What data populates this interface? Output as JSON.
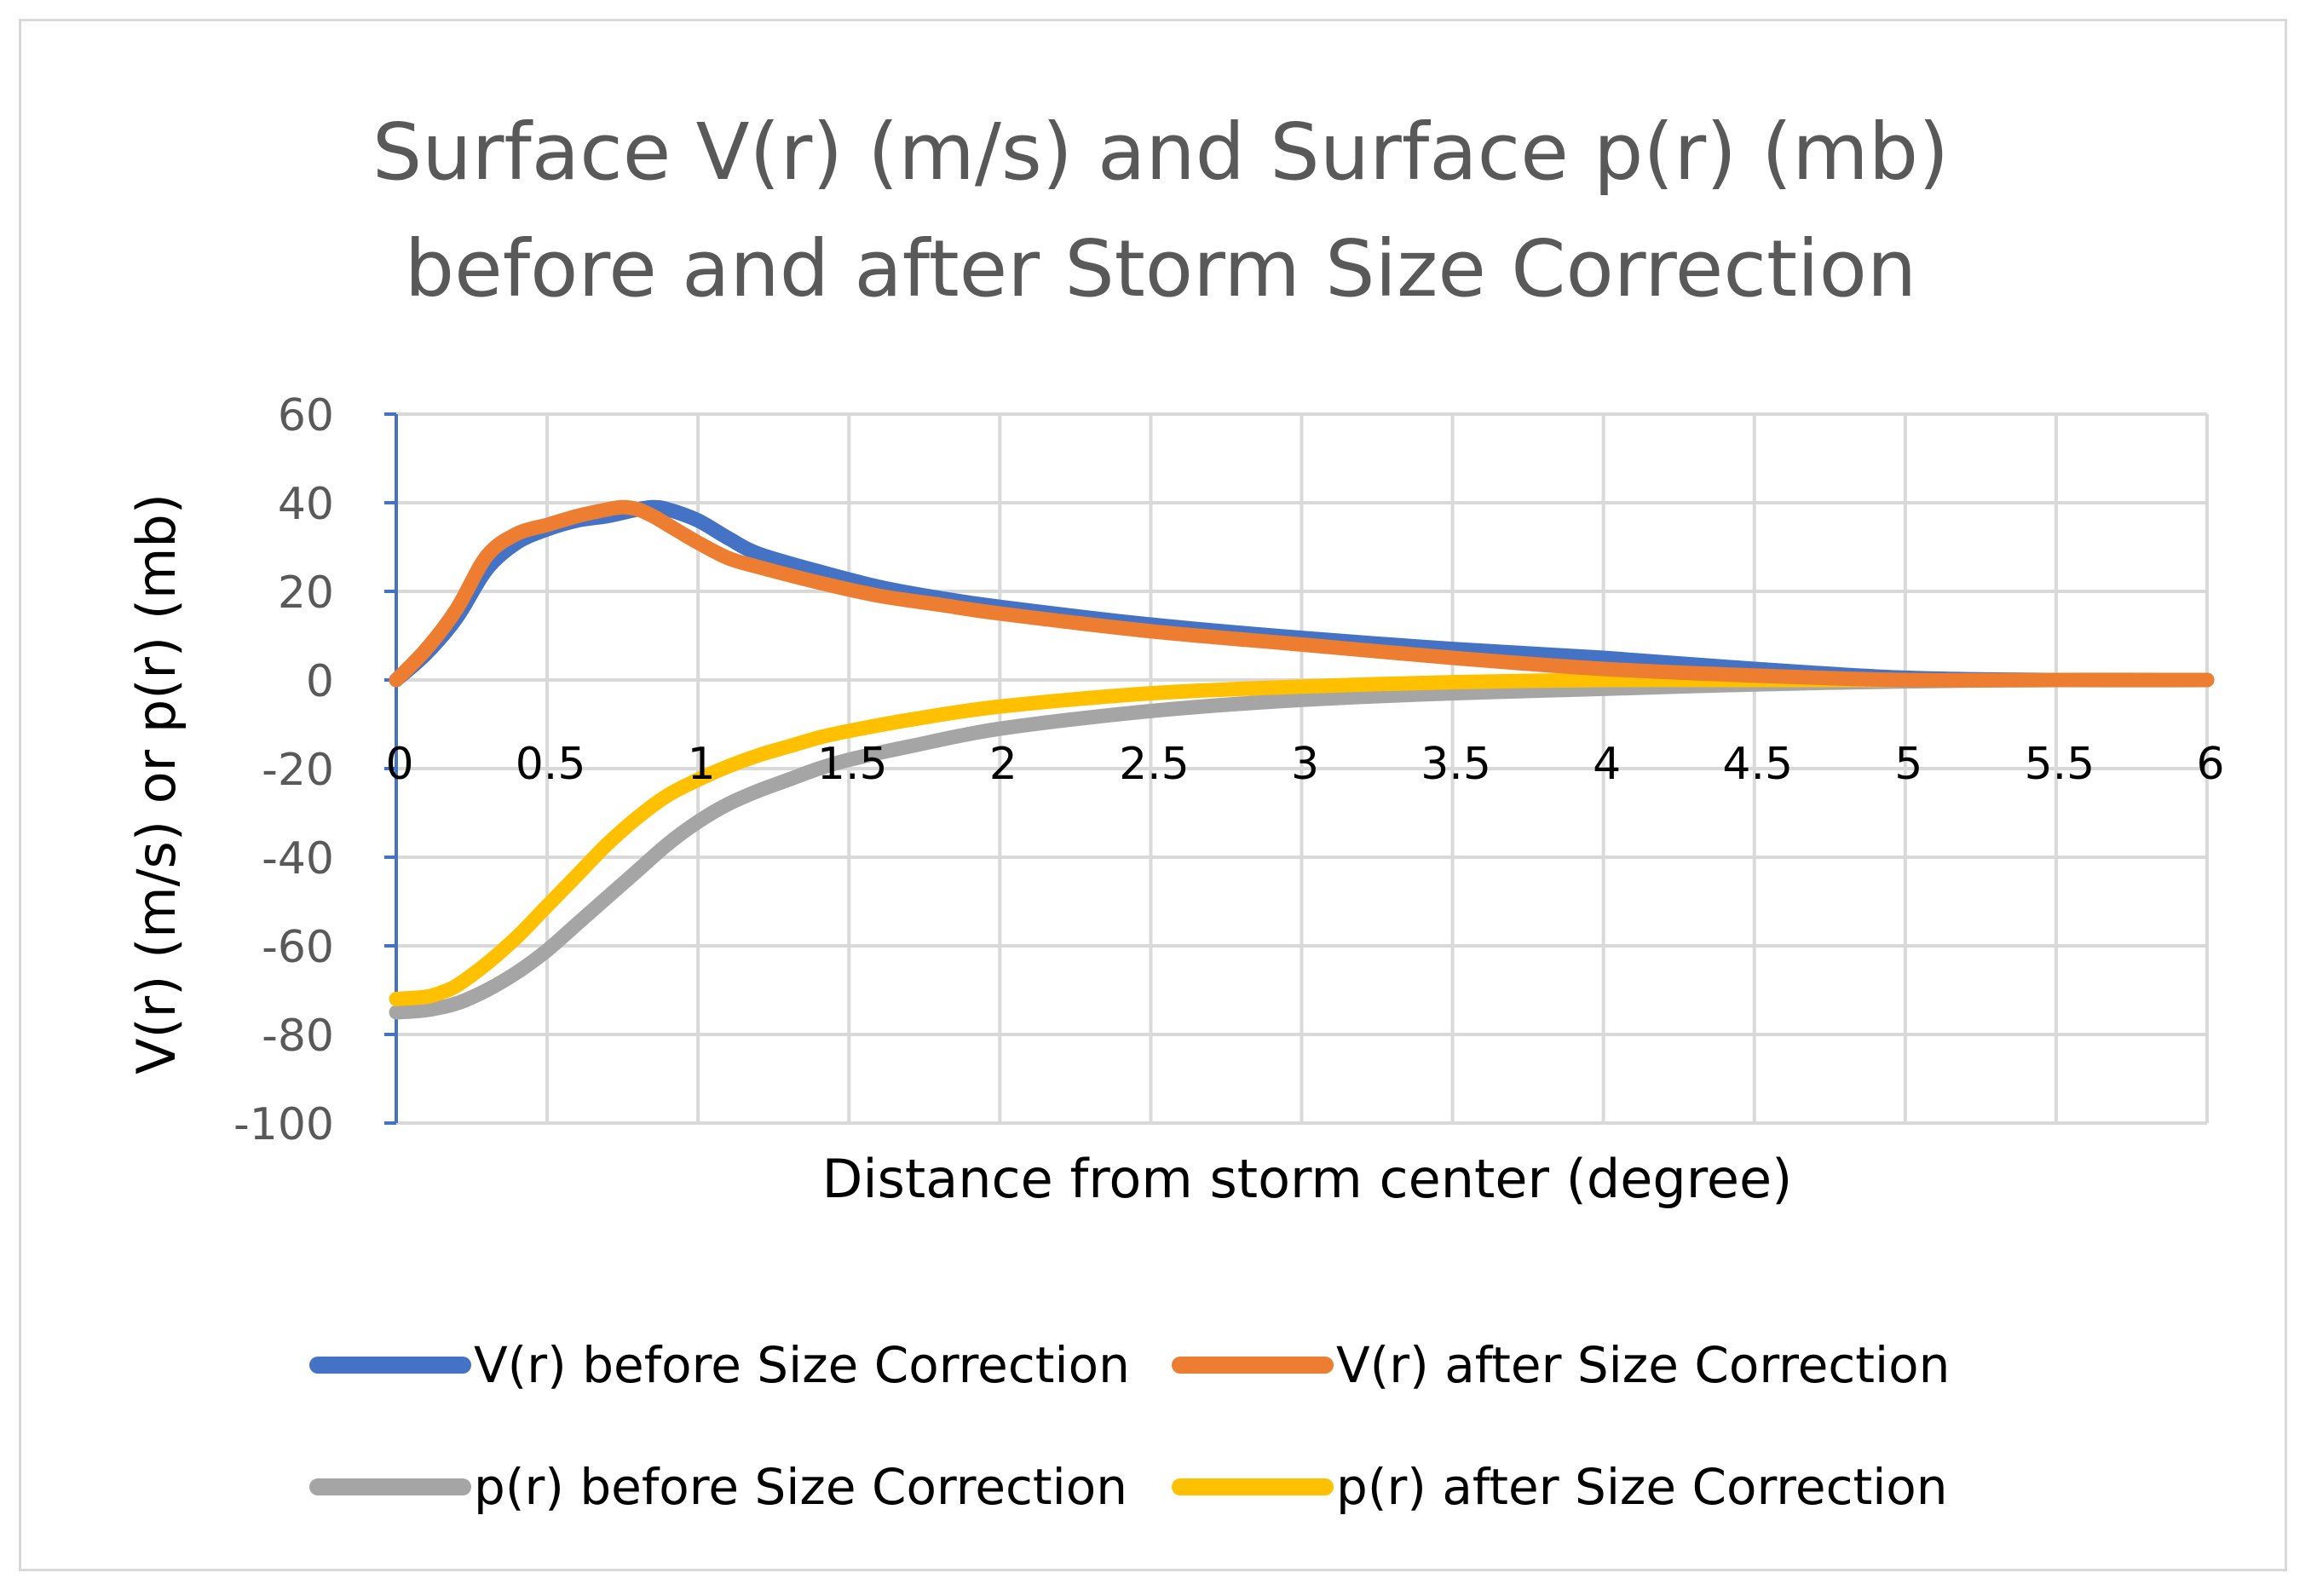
{
  "chart_data": {
    "type": "line",
    "title_lines": [
      "Surface V(r) (m/s) and Surface p(r) (mb)",
      "before and after Storm Size Correction"
    ],
    "xlabel": "Distance from storm center (degree)",
    "ylabel": "V(r) (m/s) or p(r) (mb)",
    "xlim": [
      0,
      6
    ],
    "ylim": [
      -100,
      60
    ],
    "x_ticks": [
      0,
      0.5,
      1,
      1.5,
      2,
      2.5,
      3,
      3.5,
      4,
      4.5,
      5,
      5.5,
      6
    ],
    "x_tick_labels": [
      "0",
      "0.5",
      "1",
      "1.5",
      "2",
      "2.5",
      "3",
      "3.5",
      "4",
      "4.5",
      "5",
      "5.5",
      "6"
    ],
    "y_ticks": [
      60,
      40,
      20,
      0,
      -20,
      -40,
      -60,
      -80,
      -100
    ],
    "y_tick_labels": [
      "60",
      "40",
      "20",
      "0",
      "-20",
      "-40",
      "-60",
      "-80",
      "-100"
    ],
    "grid": true,
    "legend_position": "bottom",
    "series": [
      {
        "name": "V(r) before Size Correction",
        "color": "#4472C4",
        "x": [
          0,
          0.1,
          0.2,
          0.3,
          0.4,
          0.5,
          0.6,
          0.7,
          0.8,
          0.85,
          0.9,
          1.0,
          1.1,
          1.2,
          1.4,
          1.6,
          1.8,
          2.0,
          2.5,
          3.0,
          3.5,
          4.0,
          4.5,
          5.0,
          5.5,
          6.0
        ],
        "y": [
          0,
          6,
          14,
          25,
          31,
          34,
          36,
          37,
          38.5,
          39,
          38.5,
          36,
          32,
          28.5,
          24.5,
          21,
          18.5,
          16.5,
          12.5,
          9.5,
          7,
          5,
          2.5,
          0.5,
          0,
          0
        ]
      },
      {
        "name": "V(r) after Size Correction",
        "color": "#ED7D31",
        "x": [
          0,
          0.1,
          0.2,
          0.3,
          0.4,
          0.5,
          0.6,
          0.7,
          0.75,
          0.8,
          0.85,
          0.9,
          1.0,
          1.1,
          1.2,
          1.4,
          1.6,
          1.8,
          2.0,
          2.5,
          3.0,
          3.5,
          4.0,
          4.5,
          5.0,
          5.5,
          6.0
        ],
        "y": [
          0,
          7,
          16,
          28,
          33,
          35,
          37,
          38.5,
          39,
          38.5,
          37,
          35,
          31,
          27.5,
          25.5,
          22,
          19,
          17,
          15,
          11,
          8,
          5,
          2.5,
          1,
          0,
          0,
          0
        ]
      },
      {
        "name": "p(r) before Size Correction",
        "color": "#A5A5A5",
        "x": [
          0,
          0.1,
          0.2,
          0.3,
          0.4,
          0.5,
          0.6,
          0.7,
          0.8,
          0.9,
          1.0,
          1.1,
          1.2,
          1.3,
          1.4,
          1.5,
          1.7,
          2.0,
          2.5,
          3.0,
          3.5,
          4.0,
          4.5,
          5.0,
          5.5,
          6.0
        ],
        "y": [
          -75,
          -74.5,
          -73,
          -70,
          -66,
          -61,
          -55,
          -49,
          -43,
          -37,
          -32,
          -28,
          -25,
          -22.5,
          -20,
          -18,
          -15,
          -11,
          -7,
          -4.5,
          -3,
          -2,
          -1,
          -0.3,
          0,
          0
        ]
      },
      {
        "name": "p(r) after Size Correction",
        "color": "#FFC000",
        "x": [
          0,
          0.1,
          0.15,
          0.2,
          0.3,
          0.4,
          0.5,
          0.6,
          0.7,
          0.8,
          0.9,
          1.0,
          1.1,
          1.2,
          1.3,
          1.4,
          1.5,
          1.7,
          2.0,
          2.5,
          3.0,
          3.5,
          4.0,
          4.5,
          5.0,
          5.5,
          6.0
        ],
        "y": [
          -72,
          -71.5,
          -70.5,
          -69,
          -64,
          -58,
          -51,
          -44,
          -37,
          -31,
          -26,
          -22.5,
          -19.5,
          -17,
          -15,
          -13,
          -11.5,
          -9,
          -6,
          -3,
          -1.5,
          -0.5,
          0,
          0,
          0,
          0,
          0
        ]
      }
    ]
  }
}
